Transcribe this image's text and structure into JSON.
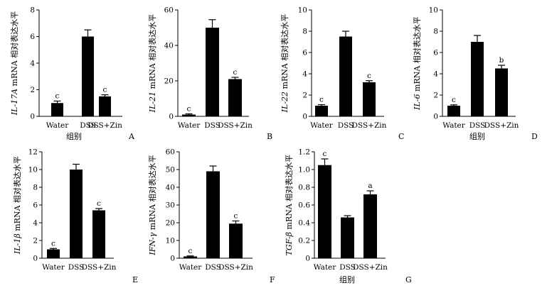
{
  "chart_data": [
    {
      "panel": "A",
      "type": "bar",
      "ylabel_gene": "IL-17A",
      "ylabel_rest": " mRNA 相对表达水平",
      "xlabel": "组别",
      "categories": [
        "Water",
        "DSS",
        "DSS+Zin"
      ],
      "values": [
        1.0,
        6.0,
        1.5
      ],
      "errors": [
        0.15,
        0.5,
        0.12
      ],
      "significance": [
        "c",
        "",
        "c"
      ],
      "ylim": [
        0,
        8
      ],
      "yticks": [
        "0",
        "2",
        "4",
        "6",
        "8"
      ]
    },
    {
      "panel": "B",
      "type": "bar",
      "ylabel_gene": "IL-21",
      "ylabel_rest": " mRNA 相对表达水平",
      "xlabel": "",
      "categories": [
        "Water",
        "DSS",
        "DSS+Zin"
      ],
      "values": [
        1.0,
        50,
        21
      ],
      "errors": [
        0.4,
        4.5,
        1.0
      ],
      "significance": [
        "c",
        "",
        "c"
      ],
      "ylim": [
        0,
        60
      ],
      "yticks": [
        "0",
        "20",
        "40",
        "60"
      ]
    },
    {
      "panel": "C",
      "type": "bar",
      "ylabel_gene": "IL-22",
      "ylabel_rest": " mRNA 相对表达水平",
      "xlabel": "",
      "categories": [
        "Water",
        "DSS",
        "DSS+Zin"
      ],
      "values": [
        1.0,
        7.5,
        3.2
      ],
      "errors": [
        0.1,
        0.5,
        0.15
      ],
      "significance": [
        "c",
        "",
        "c"
      ],
      "ylim": [
        0,
        10
      ],
      "yticks": [
        "0",
        "2",
        "4",
        "6",
        "8",
        "10"
      ]
    },
    {
      "panel": "D",
      "type": "bar",
      "ylabel_gene": "IL-6",
      "ylabel_rest": " mRNA 相对表达水平",
      "xlabel": "组别",
      "categories": [
        "Water",
        "DSS",
        "DSS+Zin"
      ],
      "values": [
        1.0,
        7.0,
        4.5
      ],
      "errors": [
        0.08,
        0.6,
        0.3
      ],
      "significance": [
        "c",
        "",
        "b"
      ],
      "ylim": [
        0,
        10
      ],
      "yticks": [
        "0",
        "2",
        "4",
        "6",
        "8",
        "10"
      ]
    },
    {
      "panel": "E",
      "type": "bar",
      "ylabel_gene": "IL-1β",
      "ylabel_rest": " mRNA 相对表达水平",
      "xlabel": "",
      "categories": [
        "Water",
        "DSS",
        "DSS+Zin"
      ],
      "values": [
        1.0,
        10.0,
        5.4
      ],
      "errors": [
        0.1,
        0.6,
        0.2
      ],
      "significance": [
        "c",
        "",
        "c"
      ],
      "ylim": [
        0,
        12
      ],
      "yticks": [
        "0",
        "2",
        "4",
        "6",
        "8",
        "10",
        "12"
      ]
    },
    {
      "panel": "F",
      "type": "bar",
      "ylabel_gene": "IFN-γ",
      "ylabel_rest": " mRNA 相对表达水平",
      "xlabel": "",
      "categories": [
        "Water",
        "DSS",
        "DSS+Zin"
      ],
      "values": [
        1.0,
        49,
        19.5
      ],
      "errors": [
        0.3,
        3.0,
        1.5
      ],
      "significance": [
        "c",
        "",
        "c"
      ],
      "ylim": [
        0,
        60
      ],
      "yticks": [
        "0",
        "10",
        "20",
        "30",
        "40",
        "50",
        "60"
      ]
    },
    {
      "panel": "G",
      "type": "bar",
      "ylabel_gene": "TGF-β",
      "ylabel_rest": " mRNA 相对表达水平",
      "xlabel": "组别",
      "categories": [
        "Water",
        "DSS",
        "DSS+Zin"
      ],
      "values": [
        1.05,
        0.46,
        0.72
      ],
      "errors": [
        0.07,
        0.02,
        0.04
      ],
      "significance": [
        "c",
        "",
        "a"
      ],
      "ylim": [
        0,
        1.2
      ],
      "yticks": [
        "0",
        "0.2",
        "0.4",
        "0.6",
        "0.8",
        "1.0",
        "1.2"
      ]
    }
  ]
}
